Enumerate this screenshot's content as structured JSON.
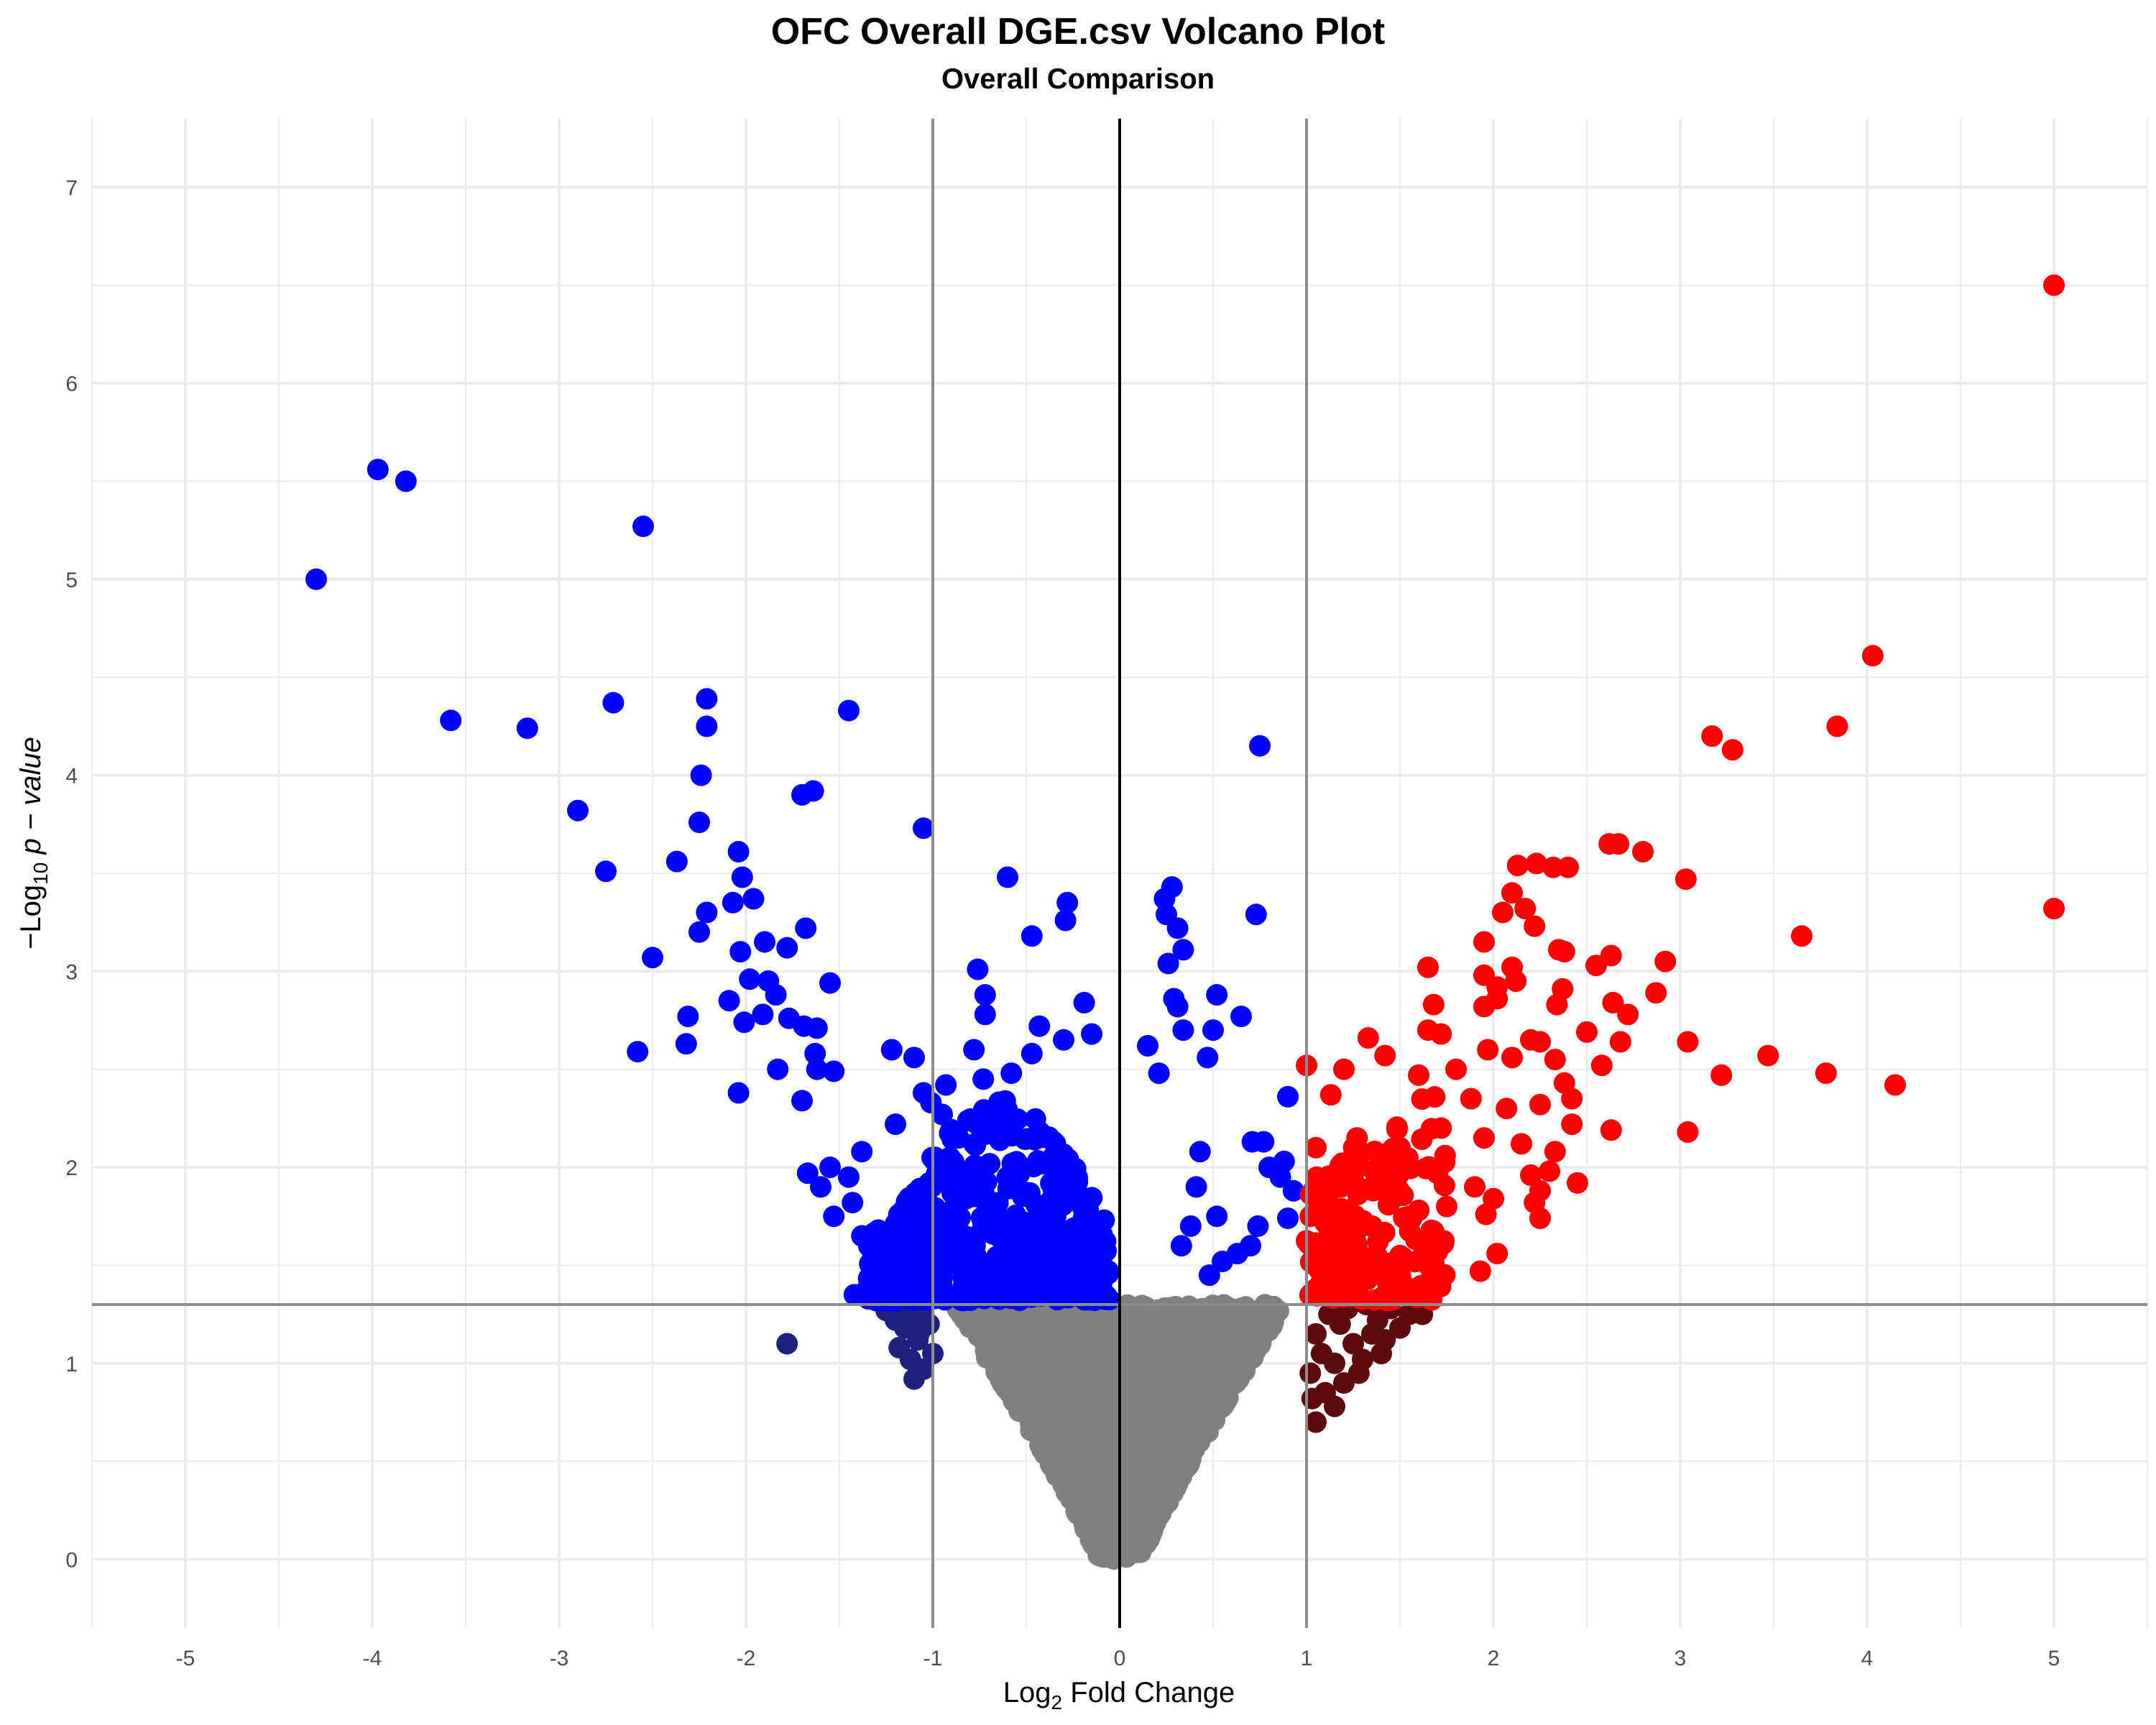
{
  "chart_data": {
    "type": "scatter",
    "title": "OFC Overall DGE.csv Volcano Plot",
    "subtitle": "Overall Comparison",
    "xlabel_prefix": "Log",
    "xlabel_sub": "2",
    "xlabel_suffix": " Fold Change",
    "ylabel_prefix": "−Log",
    "ylabel_sub": "10",
    "ylabel_suffix": " p − value",
    "xlim": [
      -5.5,
      5.5
    ],
    "ylim": [
      -0.35,
      7.35
    ],
    "x_ticks": [
      -5,
      -4,
      -3,
      -2,
      -1,
      0,
      1,
      2,
      3,
      4,
      5
    ],
    "y_ticks": [
      0,
      1,
      2,
      3,
      4,
      5,
      6,
      7
    ],
    "grid": true,
    "thresholds": {
      "fold_change": [
        -1,
        1
      ],
      "p_value_line": 1.3
    },
    "colors": {
      "up": "#ff0000",
      "down": "#0000ff",
      "up_not_significant": "#5c0a0a",
      "down_not_significant": "#1f2180",
      "not_significant": "#808080",
      "threshold_line": "#8c8c8c",
      "zero_line": "#000000",
      "grid": "#ebebeb"
    },
    "series": [
      {
        "key": "down",
        "points": [
          [
            -4.3,
            5.0
          ],
          [
            -3.97,
            5.56
          ],
          [
            -3.82,
            5.5
          ],
          [
            -2.55,
            5.27
          ],
          [
            -3.58,
            4.28
          ],
          [
            -3.17,
            4.24
          ],
          [
            -2.71,
            4.37
          ],
          [
            -2.21,
            4.39
          ],
          [
            -2.21,
            4.25
          ],
          [
            -1.45,
            4.33
          ],
          [
            -2.9,
            3.82
          ],
          [
            -2.24,
            4.0
          ],
          [
            -1.64,
            3.92
          ],
          [
            -1.7,
            3.9
          ],
          [
            -1.05,
            3.73
          ],
          [
            -2.25,
            3.76
          ],
          [
            -2.75,
            3.51
          ],
          [
            -2.37,
            3.56
          ],
          [
            -2.04,
            3.61
          ],
          [
            -2.02,
            3.48
          ],
          [
            -2.07,
            3.35
          ],
          [
            -2.21,
            3.3
          ],
          [
            -1.96,
            3.37
          ],
          [
            -2.25,
            3.2
          ],
          [
            -2.5,
            3.07
          ],
          [
            -2.03,
            3.1
          ],
          [
            -1.9,
            3.15
          ],
          [
            -1.68,
            3.22
          ],
          [
            -1.78,
            3.12
          ],
          [
            -2.09,
            2.85
          ],
          [
            -1.98,
            2.96
          ],
          [
            -1.88,
            2.95
          ],
          [
            -1.55,
            2.94
          ],
          [
            -2.31,
            2.77
          ],
          [
            -2.32,
            2.63
          ],
          [
            -2.58,
            2.59
          ],
          [
            -2.01,
            2.74
          ],
          [
            -1.91,
            2.78
          ],
          [
            -1.84,
            2.88
          ],
          [
            -1.77,
            2.76
          ],
          [
            -1.69,
            2.72
          ],
          [
            -1.62,
            2.71
          ],
          [
            -1.83,
            2.5
          ],
          [
            -1.63,
            2.58
          ],
          [
            -1.62,
            2.5
          ],
          [
            -2.04,
            2.38
          ],
          [
            -1.7,
            2.34
          ],
          [
            -1.53,
            2.49
          ],
          [
            -1.22,
            2.6
          ],
          [
            -1.1,
            2.56
          ],
          [
            -0.6,
            3.48
          ],
          [
            -0.28,
            3.35
          ],
          [
            -0.29,
            3.26
          ],
          [
            -0.47,
            3.18
          ],
          [
            -0.76,
            3.01
          ],
          [
            -0.72,
            2.88
          ],
          [
            -0.72,
            2.78
          ],
          [
            -0.43,
            2.72
          ],
          [
            -0.19,
            2.84
          ],
          [
            -0.3,
            2.65
          ],
          [
            -0.15,
            2.68
          ],
          [
            -0.78,
            2.6
          ],
          [
            -0.47,
            2.58
          ],
          [
            -0.93,
            2.42
          ],
          [
            -1.05,
            2.38
          ],
          [
            -1.01,
            2.33
          ],
          [
            -0.95,
            2.27
          ],
          [
            -1.2,
            2.22
          ],
          [
            -0.58,
            2.48
          ],
          [
            -0.73,
            2.45
          ],
          [
            0.28,
            3.43
          ],
          [
            0.24,
            3.37
          ],
          [
            0.31,
            3.22
          ],
          [
            0.34,
            3.11
          ],
          [
            0.25,
            3.29
          ],
          [
            0.26,
            3.04
          ],
          [
            0.52,
            2.88
          ],
          [
            0.29,
            2.86
          ],
          [
            0.31,
            2.82
          ],
          [
            0.65,
            2.77
          ],
          [
            0.34,
            2.7
          ],
          [
            0.5,
            2.7
          ],
          [
            0.47,
            2.56
          ],
          [
            0.15,
            2.62
          ],
          [
            0.21,
            2.48
          ],
          [
            0.75,
            4.15
          ],
          [
            0.73,
            3.29
          ],
          [
            0.71,
            2.13
          ],
          [
            0.77,
            2.13
          ],
          [
            0.8,
            2.0
          ],
          [
            0.9,
            2.36
          ],
          [
            0.86,
            1.95
          ],
          [
            0.88,
            2.03
          ],
          [
            0.93,
            1.88
          ],
          [
            0.9,
            1.74
          ],
          [
            0.74,
            1.7
          ],
          [
            0.7,
            1.6
          ],
          [
            0.63,
            1.56
          ],
          [
            0.55,
            1.52
          ],
          [
            0.48,
            1.45
          ],
          [
            0.41,
            1.9
          ],
          [
            0.43,
            2.08
          ],
          [
            0.38,
            1.7
          ],
          [
            0.33,
            1.6
          ],
          [
            0.52,
            1.75
          ],
          [
            -1.43,
            1.82
          ],
          [
            -1.53,
            1.75
          ],
          [
            -1.38,
            1.65
          ],
          [
            -1.26,
            1.62
          ],
          [
            -1.32,
            1.55
          ],
          [
            -1.42,
            1.35
          ],
          [
            -1.37,
            1.35
          ],
          [
            -1.18,
            1.45
          ],
          [
            -1.08,
            1.43
          ],
          [
            -0.98,
            1.36
          ],
          [
            -1.67,
            1.97
          ],
          [
            -1.6,
            1.9
          ],
          [
            -1.55,
            2.0
          ],
          [
            -1.45,
            1.95
          ],
          [
            -1.38,
            2.08
          ],
          [
            -1.11,
            1.8
          ],
          [
            -0.94,
            1.72
          ],
          [
            -0.85,
            1.65
          ],
          [
            -0.77,
            1.55
          ],
          [
            -0.68,
            1.5
          ]
        ],
        "band": {
          "x_from": -1.35,
          "x_to": -0.05,
          "y_from": 1.32,
          "y_top_at_edge": 2.35,
          "count": 520,
          "side": "left"
        }
      },
      {
        "key": "up",
        "points": [
          [
            5.0,
            6.5
          ],
          [
            4.03,
            4.61
          ],
          [
            3.84,
            4.25
          ],
          [
            3.17,
            4.2
          ],
          [
            3.28,
            4.13
          ],
          [
            2.62,
            3.65
          ],
          [
            2.67,
            3.65
          ],
          [
            2.8,
            3.61
          ],
          [
            2.23,
            3.55
          ],
          [
            2.32,
            3.53
          ],
          [
            2.4,
            3.53
          ],
          [
            2.13,
            3.54
          ],
          [
            3.03,
            3.47
          ],
          [
            5.0,
            3.32
          ],
          [
            3.65,
            3.18
          ],
          [
            2.1,
            3.4
          ],
          [
            2.17,
            3.32
          ],
          [
            2.05,
            3.3
          ],
          [
            2.22,
            3.23
          ],
          [
            1.95,
            3.15
          ],
          [
            2.35,
            3.11
          ],
          [
            2.38,
            3.1
          ],
          [
            2.92,
            3.05
          ],
          [
            2.63,
            3.08
          ],
          [
            2.55,
            3.03
          ],
          [
            2.1,
            3.02
          ],
          [
            2.12,
            2.95
          ],
          [
            1.95,
            2.98
          ],
          [
            1.65,
            3.02
          ],
          [
            2.02,
            2.92
          ],
          [
            2.37,
            2.91
          ],
          [
            2.87,
            2.89
          ],
          [
            2.64,
            2.84
          ],
          [
            2.72,
            2.78
          ],
          [
            2.34,
            2.83
          ],
          [
            1.68,
            2.83
          ],
          [
            1.95,
            2.82
          ],
          [
            2.02,
            2.86
          ],
          [
            2.5,
            2.69
          ],
          [
            2.68,
            2.64
          ],
          [
            2.2,
            2.65
          ],
          [
            2.25,
            2.64
          ],
          [
            1.97,
            2.6
          ],
          [
            2.1,
            2.56
          ],
          [
            1.65,
            2.7
          ],
          [
            1.33,
            2.66
          ],
          [
            1.72,
            2.68
          ],
          [
            3.04,
            2.64
          ],
          [
            3.47,
            2.57
          ],
          [
            2.58,
            2.52
          ],
          [
            2.33,
            2.55
          ],
          [
            3.22,
            2.47
          ],
          [
            3.78,
            2.48
          ],
          [
            4.15,
            2.42
          ],
          [
            2.38,
            2.43
          ],
          [
            1.0,
            2.52
          ],
          [
            1.2,
            2.5
          ],
          [
            1.42,
            2.57
          ],
          [
            1.6,
            2.47
          ],
          [
            1.8,
            2.5
          ],
          [
            2.42,
            2.35
          ],
          [
            2.25,
            2.32
          ],
          [
            2.07,
            2.3
          ],
          [
            1.88,
            2.35
          ],
          [
            1.13,
            2.37
          ],
          [
            2.63,
            2.19
          ],
          [
            3.04,
            2.18
          ],
          [
            2.42,
            2.22
          ],
          [
            2.33,
            2.08
          ],
          [
            2.15,
            2.12
          ],
          [
            1.95,
            2.15
          ],
          [
            1.72,
            2.2
          ],
          [
            1.5,
            2.1
          ],
          [
            1.27,
            2.15
          ],
          [
            1.05,
            2.1
          ],
          [
            2.3,
            1.98
          ],
          [
            2.2,
            1.96
          ],
          [
            2.45,
            1.92
          ],
          [
            2.25,
            1.88
          ],
          [
            2.0,
            1.84
          ],
          [
            1.9,
            1.9
          ],
          [
            1.7,
            1.97
          ],
          [
            1.45,
            1.95
          ],
          [
            1.25,
            1.96
          ],
          [
            1.1,
            1.92
          ],
          [
            2.22,
            1.82
          ],
          [
            2.25,
            1.74
          ],
          [
            1.96,
            1.76
          ],
          [
            1.75,
            1.8
          ],
          [
            1.55,
            1.75
          ],
          [
            1.35,
            1.7
          ],
          [
            1.15,
            1.78
          ],
          [
            1.02,
            1.75
          ],
          [
            2.02,
            1.56
          ],
          [
            1.93,
            1.47
          ],
          [
            1.7,
            1.57
          ],
          [
            1.5,
            1.55
          ],
          [
            1.3,
            1.5
          ],
          [
            1.12,
            1.45
          ],
          [
            1.05,
            1.38
          ]
        ],
        "band": {
          "x_from": 1.0,
          "x_to": 1.75,
          "y_from": 1.32,
          "y_top_at_edge": 2.45,
          "count": 160,
          "side": "right"
        }
      },
      {
        "key": "down_not_significant",
        "points": [
          [
            -1.78,
            1.1
          ],
          [
            -1.2,
            1.22
          ],
          [
            -1.15,
            1.18
          ],
          [
            -1.25,
            1.27
          ],
          [
            -1.1,
            1.25
          ],
          [
            -1.08,
            1.12
          ],
          [
            -1.12,
            1.02
          ],
          [
            -1.1,
            0.92
          ],
          [
            -1.05,
            0.97
          ],
          [
            -1.18,
            1.08
          ],
          [
            -1.02,
            1.2
          ],
          [
            -1.05,
            1.28
          ],
          [
            -1.15,
            1.3
          ],
          [
            -1.0,
            1.05
          ],
          [
            -1.07,
            1.16
          ]
        ]
      },
      {
        "key": "up_not_significant",
        "points": [
          [
            1.05,
            0.7
          ],
          [
            1.15,
            0.78
          ],
          [
            1.1,
            0.85
          ],
          [
            1.2,
            0.9
          ],
          [
            1.28,
            0.95
          ],
          [
            1.3,
            1.02
          ],
          [
            1.25,
            1.1
          ],
          [
            1.35,
            1.15
          ],
          [
            1.42,
            1.12
          ],
          [
            1.5,
            1.18
          ],
          [
            1.55,
            1.25
          ],
          [
            1.45,
            1.28
          ],
          [
            1.38,
            1.22
          ],
          [
            1.18,
            1.2
          ],
          [
            1.08,
            1.05
          ],
          [
            1.02,
            0.95
          ],
          [
            1.12,
            1.25
          ],
          [
            1.22,
            1.28
          ],
          [
            1.32,
            1.3
          ],
          [
            1.4,
            1.05
          ],
          [
            1.05,
            1.15
          ],
          [
            1.15,
            1.0
          ],
          [
            1.62,
            1.25
          ],
          [
            1.58,
            1.3
          ],
          [
            1.03,
            0.82
          ]
        ]
      },
      {
        "key": "not_significant",
        "points": [],
        "cloud": {
          "count": 2600,
          "y_max": 1.3
        }
      }
    ]
  }
}
